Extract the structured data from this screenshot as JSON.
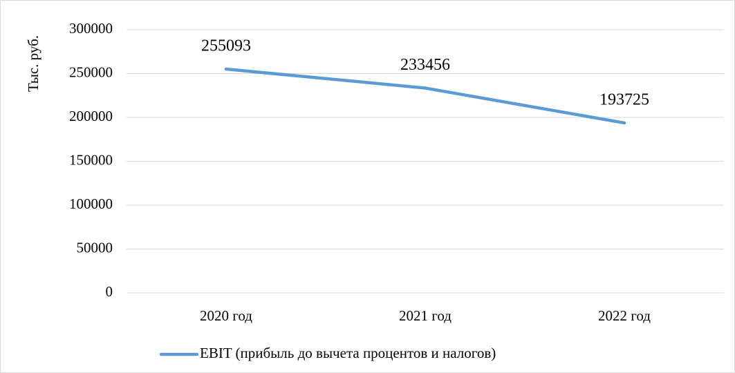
{
  "chart_data": {
    "type": "line",
    "y_label": "Тыс. руб.",
    "categories": [
      "2020 год",
      "2021 год",
      "2022 год"
    ],
    "series": [
      {
        "name": "EBIT (прибыль до вычета процентов и налогов)",
        "color": "#5b9bd5",
        "values": [
          255093,
          233456,
          193725
        ]
      }
    ],
    "ylim": [
      0,
      300000
    ],
    "yticks": [
      0,
      50000,
      100000,
      150000,
      200000,
      250000,
      300000
    ],
    "grid": true,
    "legend": "bottom",
    "data_labels": true
  }
}
